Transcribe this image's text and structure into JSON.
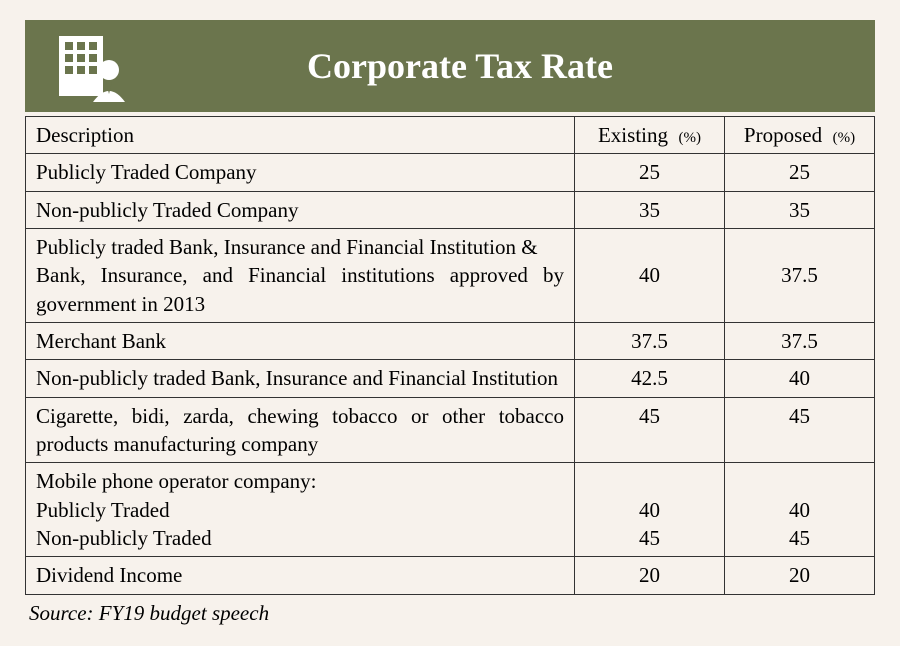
{
  "header": {
    "title": "Corporate Tax Rate",
    "background_color": "#6b754d",
    "title_color": "#ffffff"
  },
  "table": {
    "columns": {
      "desc": "Description",
      "existing": "Existing",
      "proposed": "Proposed",
      "pct_suffix": "(%)"
    },
    "rows": [
      {
        "desc": "Publicly Traded Company",
        "existing": "25",
        "proposed": "25"
      },
      {
        "desc": "Non-publicly Traded Company",
        "existing": "35",
        "proposed": "35"
      },
      {
        "desc": "Publicly traded Bank, Insurance and Financial Institution &\nBank, Insurance, and Financial institutions approved by government in 2013",
        "existing": "40",
        "proposed": "37.5"
      },
      {
        "desc": "Merchant Bank",
        "existing": "37.5",
        "proposed": "37.5"
      },
      {
        "desc": "Non-publicly traded Bank, Insurance and Financial Institution",
        "existing": "42.5",
        "proposed": "40"
      },
      {
        "desc": "Cigarette, bidi, zarda, chewing tobacco or other tobacco products manufacturing company",
        "existing": "45",
        "proposed": "45",
        "valign": "top"
      },
      {
        "desc": "Mobile phone operator company:\nPublicly Traded\nNon-publicly Traded",
        "existing": "\n40\n45",
        "proposed": "\n40\n45",
        "multi": true
      },
      {
        "desc": "Dividend Income",
        "existing": "20",
        "proposed": "20"
      }
    ]
  },
  "source": "Source: FY19 budget speech",
  "styling": {
    "page_bg": "#f7f2ec",
    "border_color": "#333333",
    "font_family": "Times New Roman",
    "title_fontsize": 36,
    "cell_fontsize": 21
  }
}
